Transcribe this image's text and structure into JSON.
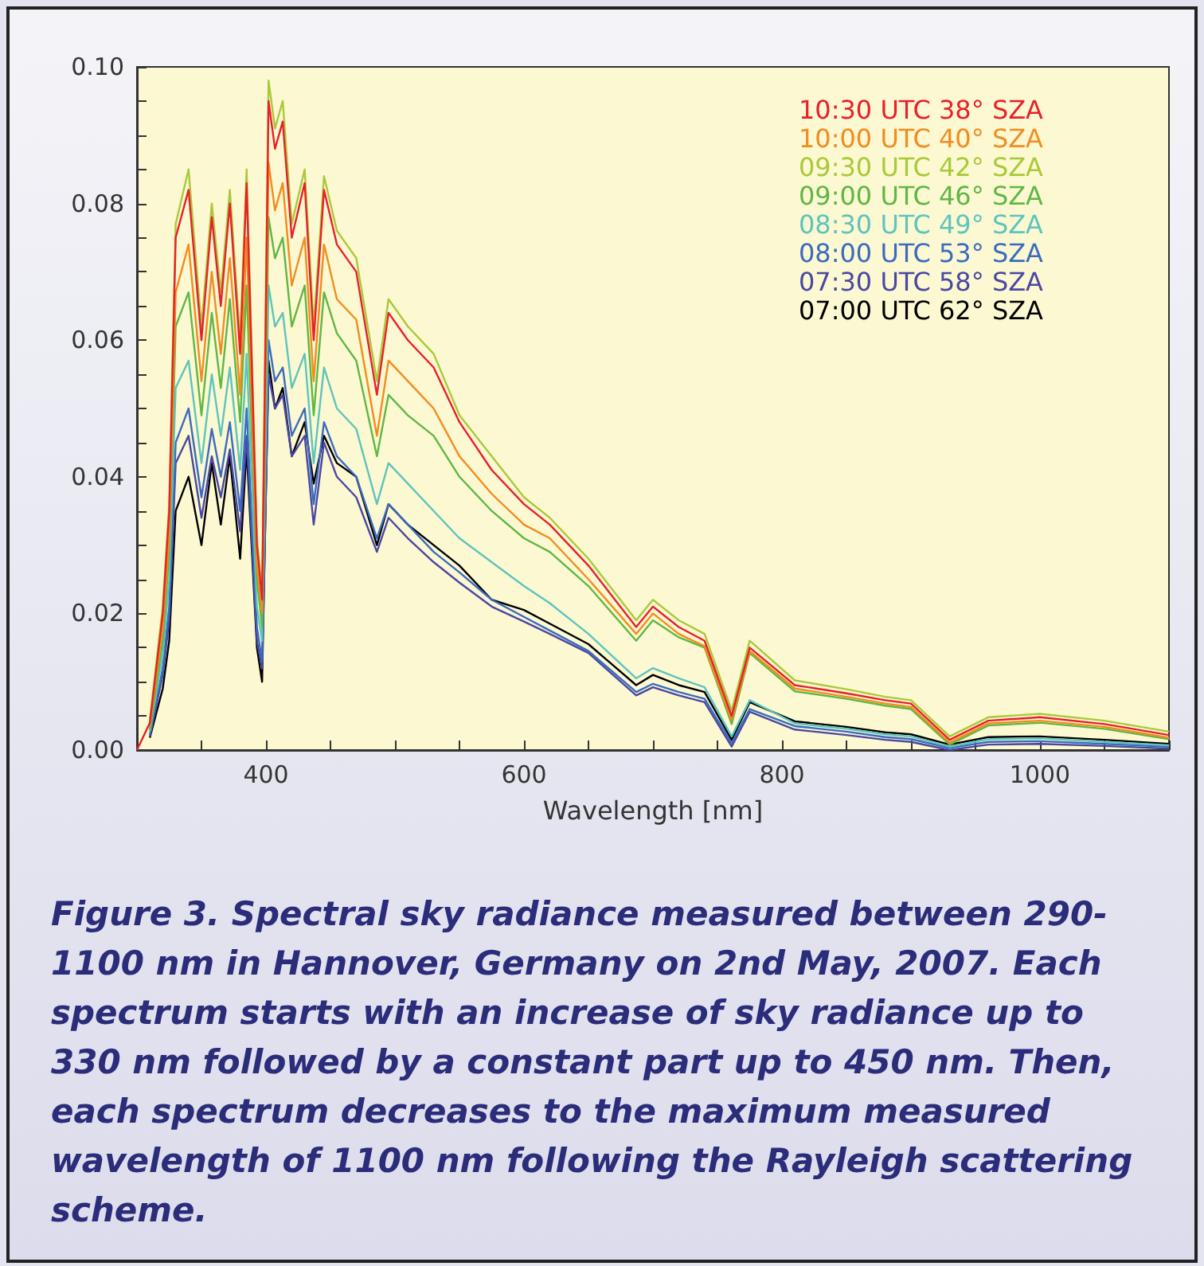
{
  "chart_data": {
    "type": "line",
    "xlabel": "Wavelength [nm]",
    "x": [
      300,
      310,
      320,
      325,
      330,
      340,
      350,
      358,
      365,
      372,
      380,
      385,
      393,
      397,
      402,
      407,
      413,
      420,
      430,
      437,
      445,
      455,
      470,
      486,
      495,
      510,
      530,
      550,
      575,
      600,
      620,
      650,
      687,
      700,
      720,
      740,
      761,
      775,
      810,
      850,
      880,
      900,
      930,
      960,
      1000,
      1050,
      1100
    ],
    "xlim": [
      300,
      1100
    ],
    "xticks": [
      {
        "value": 300,
        "label": null
      },
      {
        "value": 350,
        "label": null
      },
      400,
      {
        "value": 450,
        "label": null
      },
      {
        "value": 500,
        "label": null
      },
      {
        "value": 550,
        "label": null
      },
      600,
      {
        "value": 650,
        "label": null
      },
      {
        "value": 700,
        "label": null
      },
      {
        "value": 750,
        "label": null
      },
      800,
      {
        "value": 850,
        "label": null
      },
      {
        "value": 900,
        "label": null
      },
      {
        "value": 950,
        "label": null
      },
      1000,
      {
        "value": 1050,
        "label": null
      },
      {
        "value": 1100,
        "label": null
      }
    ],
    "ylim": [
      0,
      0.1
    ],
    "yticks": [
      {
        "value": 0,
        "label": "0.00"
      },
      {
        "value": 0.005,
        "label": null
      },
      {
        "value": 0.01,
        "label": null
      },
      {
        "value": 0.015,
        "label": null
      },
      {
        "value": 0.02,
        "label": "0.02"
      },
      {
        "value": 0.025,
        "label": null
      },
      {
        "value": 0.03,
        "label": null
      },
      {
        "value": 0.035,
        "label": null
      },
      {
        "value": 0.04,
        "label": "0.04"
      },
      {
        "value": 0.045,
        "label": null
      },
      {
        "value": 0.05,
        "label": null
      },
      {
        "value": 0.055,
        "label": null
      },
      {
        "value": 0.06,
        "label": "0.06"
      },
      {
        "value": 0.065,
        "label": null
      },
      {
        "value": 0.07,
        "label": null
      },
      {
        "value": 0.075,
        "label": null
      },
      {
        "value": 0.08,
        "label": "0.08"
      },
      {
        "value": 0.085,
        "label": null
      },
      {
        "value": 0.09,
        "label": null
      },
      {
        "value": 0.095,
        "label": null
      },
      {
        "value": 0.1,
        "label": "0.10"
      }
    ],
    "legend": "top right",
    "series": [
      {
        "name": "10:30 UTC 38° SZA",
        "color": "#e8202a",
        "values": [
          0,
          0.004,
          0.02,
          0.035,
          0.075,
          0.082,
          0.06,
          0.078,
          0.065,
          0.08,
          0.058,
          0.083,
          0.03,
          0.022,
          0.095,
          0.088,
          0.092,
          0.075,
          0.083,
          0.06,
          0.082,
          0.074,
          0.07,
          0.052,
          0.064,
          0.06,
          0.056,
          0.048,
          0.041,
          0.036,
          0.033,
          0.027,
          0.018,
          0.021,
          0.018,
          0.016,
          0.005,
          0.015,
          0.0095,
          0.0083,
          0.0073,
          0.0068,
          0.0015,
          0.0043,
          0.0048,
          0.0038,
          0.0022
        ]
      },
      {
        "name": "10:00 UTC 40° SZA",
        "color": "#f28c1e",
        "values": [
          null,
          0.0035,
          0.018,
          0.031,
          0.067,
          0.074,
          0.054,
          0.07,
          0.058,
          0.072,
          0.052,
          0.075,
          0.027,
          0.02,
          0.086,
          0.079,
          0.083,
          0.068,
          0.075,
          0.054,
          0.074,
          0.066,
          0.063,
          0.046,
          0.057,
          0.054,
          0.05,
          0.043,
          0.0375,
          0.033,
          0.031,
          0.025,
          0.017,
          0.02,
          0.017,
          0.0152,
          0.0044,
          0.0145,
          0.009,
          0.0078,
          0.0068,
          0.0063,
          0.0011,
          0.0039,
          0.0043,
          0.0034,
          0.0018
        ]
      },
      {
        "name": "09:30 UTC 42° SZA",
        "color": "#a9c93a",
        "values": [
          null,
          0.0045,
          0.021,
          0.036,
          0.077,
          0.085,
          0.062,
          0.08,
          0.067,
          0.082,
          0.06,
          0.085,
          0.031,
          0.023,
          0.098,
          0.091,
          0.095,
          0.077,
          0.085,
          0.062,
          0.084,
          0.076,
          0.072,
          0.054,
          0.066,
          0.062,
          0.058,
          0.049,
          0.043,
          0.037,
          0.034,
          0.028,
          0.019,
          0.022,
          0.019,
          0.017,
          0.0058,
          0.016,
          0.0102,
          0.0089,
          0.0078,
          0.0073,
          0.002,
          0.0048,
          0.0053,
          0.0043,
          0.0027
        ]
      },
      {
        "name": "09:00 UTC 46° SZA",
        "color": "#5fb745",
        "values": [
          null,
          0.003,
          0.016,
          0.029,
          0.062,
          0.067,
          0.049,
          0.064,
          0.053,
          0.066,
          0.048,
          0.068,
          0.025,
          0.018,
          0.078,
          0.072,
          0.075,
          0.062,
          0.068,
          0.049,
          0.067,
          0.061,
          0.057,
          0.043,
          0.052,
          0.049,
          0.046,
          0.04,
          0.035,
          0.031,
          0.029,
          0.024,
          0.016,
          0.019,
          0.0165,
          0.015,
          0.0038,
          0.0142,
          0.0086,
          0.0075,
          0.0065,
          0.006,
          0.0008,
          0.0036,
          0.004,
          0.0031,
          0.0016
        ]
      },
      {
        "name": "08:30 UTC 49° SZA",
        "color": "#5ec4bd",
        "values": [
          null,
          0.0028,
          0.014,
          0.025,
          0.053,
          0.057,
          0.042,
          0.055,
          0.046,
          0.056,
          0.041,
          0.058,
          0.021,
          0.016,
          0.068,
          0.062,
          0.064,
          0.053,
          0.058,
          0.042,
          0.056,
          0.05,
          0.047,
          0.036,
          0.042,
          0.039,
          0.035,
          0.031,
          0.0275,
          0.024,
          0.0215,
          0.017,
          0.0105,
          0.012,
          0.0105,
          0.0092,
          0.002,
          0.0073,
          0.0039,
          0.0031,
          0.0023,
          0.002,
          0.0005,
          0.0016,
          0.0017,
          0.0012,
          0.0007
        ]
      },
      {
        "name": "08:00 UTC 53° SZA",
        "color": "#3b6bbf",
        "values": [
          null,
          0.0022,
          0.012,
          0.021,
          0.045,
          0.05,
          0.037,
          0.047,
          0.04,
          0.048,
          0.035,
          0.05,
          0.018,
          0.013,
          0.06,
          0.054,
          0.056,
          0.046,
          0.05,
          0.036,
          0.048,
          0.043,
          0.04,
          0.031,
          0.036,
          0.033,
          0.029,
          0.026,
          0.022,
          0.0195,
          0.0175,
          0.0145,
          0.0085,
          0.0097,
          0.0085,
          0.0075,
          0.001,
          0.006,
          0.0035,
          0.0027,
          0.0019,
          0.0016,
          0.0003,
          0.0012,
          0.0013,
          0.0009,
          0.0005
        ]
      },
      {
        "name": "07:30 UTC 58° SZA",
        "color": "#4a47a3",
        "values": [
          null,
          0.002,
          0.011,
          0.019,
          0.042,
          0.046,
          0.034,
          0.043,
          0.037,
          0.044,
          0.032,
          0.046,
          0.016,
          0.012,
          0.055,
          0.05,
          0.052,
          0.043,
          0.046,
          0.033,
          0.045,
          0.04,
          0.037,
          0.029,
          0.034,
          0.031,
          0.0275,
          0.0245,
          0.021,
          0.0188,
          0.017,
          0.0142,
          0.008,
          0.0092,
          0.008,
          0.007,
          0.0005,
          0.0056,
          0.003,
          0.0022,
          0.0015,
          0.0012,
          0.0,
          0.0008,
          0.0009,
          0.0006,
          0.0002
        ]
      },
      {
        "name": "07:00 UTC 62° SZA",
        "color": "#000000",
        "values": [
          null,
          0.0018,
          0.009,
          0.016,
          0.035,
          0.04,
          0.03,
          0.042,
          0.033,
          0.043,
          0.028,
          0.044,
          0.015,
          0.01,
          0.057,
          0.05,
          0.053,
          0.043,
          0.048,
          0.039,
          0.046,
          0.042,
          0.04,
          0.03,
          0.036,
          0.033,
          0.03,
          0.027,
          0.022,
          0.0205,
          0.0185,
          0.0155,
          0.0095,
          0.011,
          0.0095,
          0.0085,
          0.0015,
          0.007,
          0.0042,
          0.0034,
          0.0026,
          0.0023,
          0.0008,
          0.0019,
          0.002,
          0.0015,
          0.0009
        ]
      }
    ],
    "annotations": [
      "Figure 3. Spectral sky radiance measured between 290-1100 nm in Hannover, Germany on 2nd May, 2007. Each spectrum starts with an increase of sky radiance up to 330 nm followed by a constant part up to 450 nm. Then, each spectrum decreases to the maximum measured wavelength of 1100 nm following the Rayleigh scattering scheme."
    ]
  }
}
